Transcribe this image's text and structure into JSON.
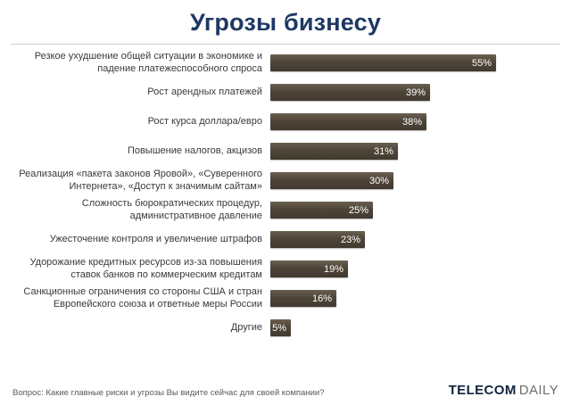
{
  "title": "Угрозы бизнесу",
  "footer": {
    "question": "Вопрос: Какие главные риски и угрозы Вы видите сейчас для своей компании?",
    "logo": {
      "part1": "TELECOM",
      "part2": "DAILY"
    }
  },
  "chart_data": {
    "type": "bar",
    "orientation": "horizontal",
    "title": "Угрозы бизнесу",
    "categories": [
      "Резкое ухудшение общей ситуации в экономике и падение платежеспособного спроса",
      "Рост арендных платежей",
      "Рост курса доллара/евро",
      "Повышение налогов, акцизов",
      "Реализация «пакета законов Яровой», «Суверенного Интернета», «Доступ к значимым сайтам»",
      "Сложность бюрократических процедур, административное давление",
      "Ужесточение контроля и увеличение штрафов",
      "Удорожание кредитных ресурсов из-за повышения ставок банков по коммерческим кредитам",
      "Санкционные ограничения со стороны США и стран Европейского союза и ответные меры России",
      "Другие"
    ],
    "values": [
      55,
      39,
      38,
      31,
      30,
      25,
      23,
      19,
      16,
      5
    ],
    "value_suffix": "%",
    "xlim": [
      0,
      60
    ],
    "grid": false,
    "legend": false,
    "bar_color": "#4e4538",
    "value_label_color": "#ffffff",
    "title_color": "#1f3864"
  }
}
